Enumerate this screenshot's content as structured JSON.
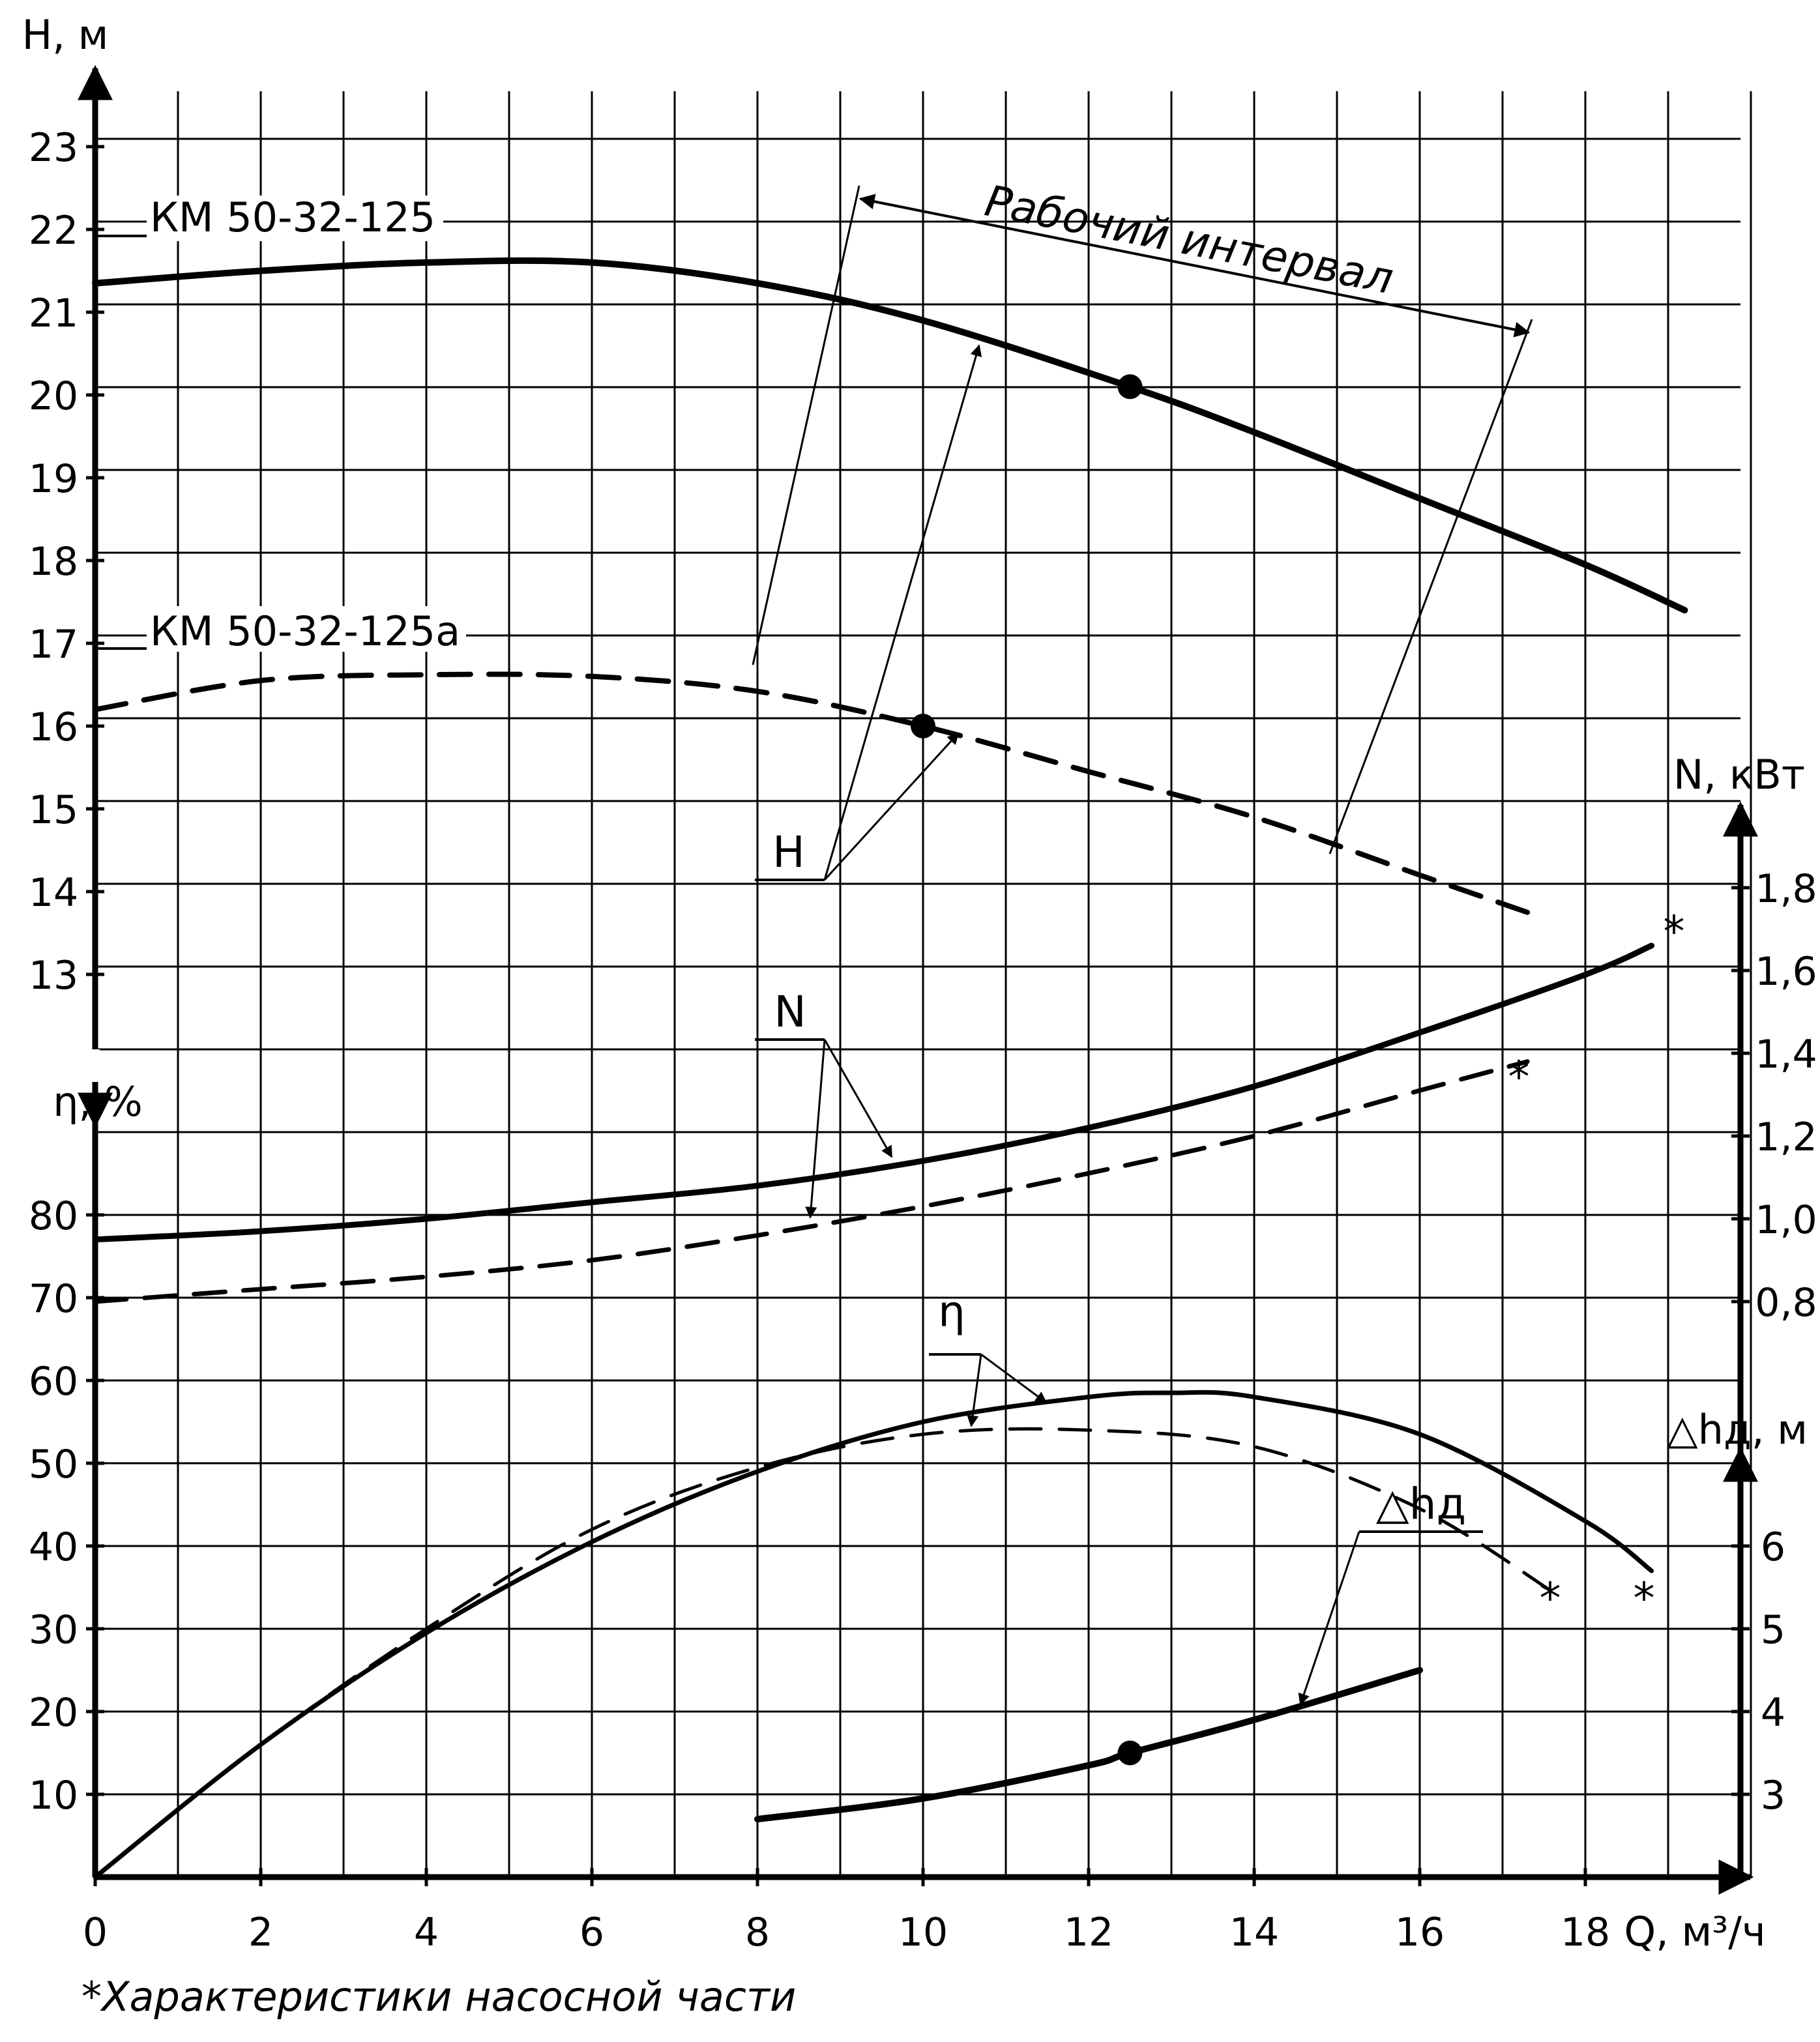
{
  "chart_data": {
    "type": "line",
    "x_axis": {
      "label": "Q, м³/ч",
      "range": [
        0,
        20
      ],
      "ticks": [
        "0",
        "2",
        "4",
        "6",
        "8",
        "10",
        "12",
        "14",
        "16",
        "18"
      ]
    },
    "head_axis": {
      "label": "H, м",
      "range": [
        12,
        24
      ],
      "ticks": [
        "13",
        "14",
        "15",
        "16",
        "17",
        "18",
        "19",
        "20",
        "21",
        "22",
        "23"
      ]
    },
    "power_axis": {
      "label": "N, кВт",
      "range": [
        0.8,
        2.0
      ],
      "ticks": [
        "0,8",
        "1,0",
        "1,2",
        "1,4",
        "1,6",
        "1,8"
      ]
    },
    "efficiency_axis": {
      "label": "η, %",
      "range": [
        0,
        90
      ],
      "ticks": [
        "10",
        "20",
        "30",
        "40",
        "50",
        "60",
        "70",
        "80"
      ]
    },
    "npsh_axis": {
      "label": "△hд, м",
      "range": [
        2,
        7
      ],
      "ticks": [
        "3",
        "4",
        "5",
        "6"
      ]
    },
    "grid": true,
    "series": [
      {
        "name": "КМ 50-32-125",
        "quantity": "H",
        "style": "solid",
        "x": [
          0,
          2,
          4,
          6,
          8,
          10,
          12.5,
          14,
          16,
          18,
          19.2
        ],
        "y": [
          21.35,
          21.5,
          21.6,
          21.6,
          21.35,
          20.9,
          20.1,
          19.55,
          18.75,
          17.95,
          17.4
        ]
      },
      {
        "name": "КМ 50-32-125а",
        "quantity": "H",
        "style": "dashed",
        "x": [
          0,
          2,
          4,
          6,
          8,
          10,
          12,
          14,
          16,
          17.3
        ],
        "y": [
          16.2,
          16.55,
          16.62,
          16.6,
          16.42,
          16.0,
          15.45,
          14.9,
          14.2,
          13.75
        ]
      },
      {
        "quantity": "N",
        "style": "solid",
        "x": [
          0,
          2,
          4,
          6,
          8,
          10,
          12,
          14,
          16,
          18,
          18.8
        ],
        "y": [
          0.95,
          0.97,
          1.0,
          1.04,
          1.08,
          1.14,
          1.22,
          1.32,
          1.45,
          1.59,
          1.66
        ]
      },
      {
        "quantity": "N",
        "style": "dashed",
        "x": [
          0,
          2,
          4,
          6,
          8,
          10,
          12,
          14,
          16,
          17.3
        ],
        "y": [
          0.8,
          0.83,
          0.86,
          0.9,
          0.96,
          1.03,
          1.11,
          1.2,
          1.31,
          1.38
        ]
      },
      {
        "quantity": "η",
        "style": "solid",
        "x": [
          0,
          2,
          4,
          6,
          8,
          10,
          12,
          13,
          14,
          16,
          18,
          18.8
        ],
        "y": [
          0,
          16,
          29.5,
          40.5,
          49,
          55,
          58,
          58.5,
          58,
          53.5,
          43,
          37
        ]
      },
      {
        "quantity": "η",
        "style": "dashed",
        "x": [
          0,
          2,
          4,
          6,
          8,
          10,
          12,
          14,
          16,
          17.6
        ],
        "y": [
          0,
          16,
          30,
          42,
          49.5,
          53.5,
          54,
          52,
          44.5,
          34.5
        ]
      },
      {
        "quantity": "△hд",
        "style": "solid",
        "x": [
          8,
          10,
          12,
          12.5,
          14,
          16
        ],
        "y": [
          2.7,
          2.95,
          3.35,
          3.5,
          3.9,
          4.5
        ]
      }
    ],
    "operating_points": [
      {
        "x": 12.5,
        "y": 20.1
      },
      {
        "x": 10,
        "y": 16.0
      },
      {
        "x": 12.5,
        "y": 3.5
      }
    ],
    "annotations": {
      "working_range": "Рабочий интервал",
      "h_label": "H",
      "n_label": "N",
      "eta_label": "η",
      "npsh_label": "△hд",
      "end_marker": "*"
    },
    "footnote": "*Характеристики насосной части"
  }
}
